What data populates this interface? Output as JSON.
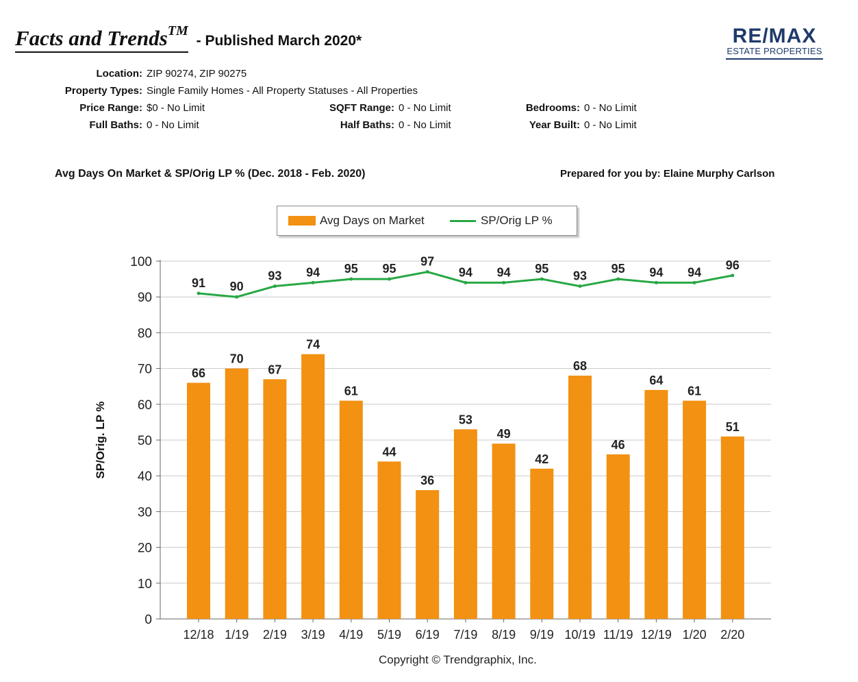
{
  "header": {
    "brand_title": "Facts and Trends",
    "trademark": "TM",
    "published": " - Published March 2020*"
  },
  "logo": {
    "main": "RE/MAX",
    "sub": "ESTATE PROPERTIES",
    "color": "#1f3a6b"
  },
  "criteria": {
    "location": {
      "label": "Location:",
      "value": "ZIP 90274, ZIP 90275"
    },
    "property_types": {
      "label": "Property Types:",
      "value": "Single Family Homes - All Property Statuses - All Properties"
    },
    "price_range": {
      "label": "Price Range:",
      "value": "$0 - No Limit"
    },
    "sqft_range": {
      "label": "SQFT Range:",
      "value": "0 - No Limit"
    },
    "bedrooms": {
      "label": "Bedrooms:",
      "value": "0 - No Limit"
    },
    "full_baths": {
      "label": "Full Baths:",
      "value": "0 - No Limit"
    },
    "half_baths": {
      "label": "Half Baths:",
      "value": "0 - No Limit"
    },
    "year_built": {
      "label": "Year Built:",
      "value": "0 - No Limit"
    }
  },
  "section_title": "Avg Days On Market & SP/Orig LP % (Dec. 2018 - Feb. 2020)",
  "prepared_by": "Prepared for you by: Elaine Murphy Carlson",
  "copyright": "Copyright © Trendgraphix, Inc.",
  "colors": {
    "bar": "#f29112",
    "line": "#27a844",
    "grid": "#c8c8c8"
  },
  "chart_data": {
    "type": "bar",
    "ylabel": "SP/Orig. LP %",
    "xlabel": "",
    "ylim": [
      0,
      100
    ],
    "yticks": [
      0,
      10,
      20,
      30,
      40,
      50,
      60,
      70,
      80,
      90,
      100
    ],
    "grid": true,
    "legend_position": "top-center",
    "categories": [
      "12/18",
      "1/19",
      "2/19",
      "3/19",
      "4/19",
      "5/19",
      "6/19",
      "7/19",
      "8/19",
      "9/19",
      "10/19",
      "11/19",
      "12/19",
      "1/20",
      "2/20"
    ],
    "series": [
      {
        "name": "Avg Days on Market",
        "type": "bar",
        "values": [
          66,
          70,
          67,
          74,
          61,
          44,
          36,
          53,
          49,
          42,
          68,
          46,
          64,
          61,
          51
        ]
      },
      {
        "name": "SP/Orig LP %",
        "type": "line",
        "values": [
          91,
          90,
          93,
          94,
          95,
          95,
          97,
          94,
          94,
          95,
          93,
          95,
          94,
          94,
          96
        ]
      }
    ]
  }
}
